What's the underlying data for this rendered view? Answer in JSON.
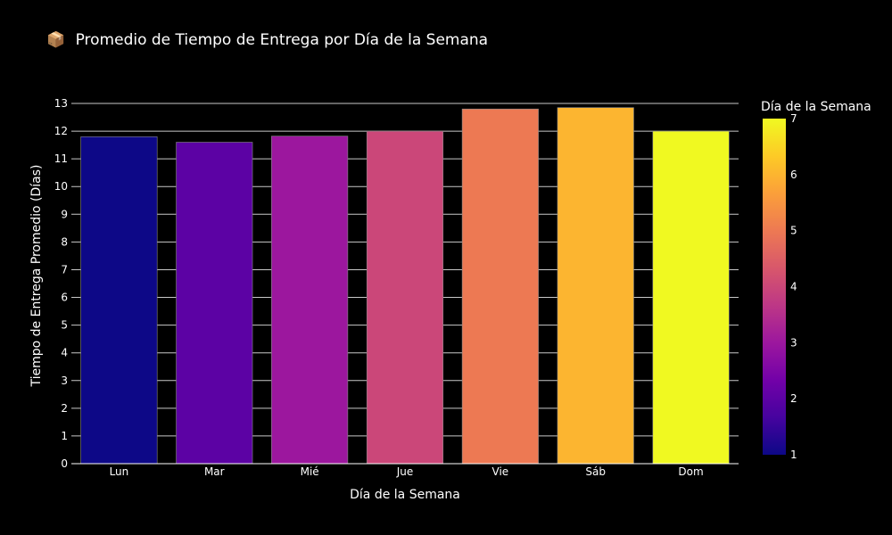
{
  "chart_data": {
    "type": "bar",
    "title_icon": "📦",
    "title": "Promedio de Tiempo de Entrega por Día de la Semana",
    "xlabel": "Día de la Semana",
    "ylabel": "Tiempo de Entrega Promedio (Días)",
    "categories": [
      "Lun",
      "Mar",
      "Mié",
      "Jue",
      "Vie",
      "Sáb",
      "Dom"
    ],
    "values": [
      11.8,
      11.6,
      11.82,
      12.0,
      12.8,
      12.85,
      12.0
    ],
    "color_values": [
      1,
      2,
      3,
      4,
      5,
      6,
      7
    ],
    "ylim": [
      0,
      13
    ],
    "yticks": [
      "0",
      "1",
      "2",
      "3",
      "4",
      "5",
      "6",
      "7",
      "8",
      "9",
      "10",
      "11",
      "12",
      "13"
    ],
    "grid": true,
    "colorbar": {
      "title": "Día de la Semana",
      "range": [
        1,
        7
      ],
      "ticks": [
        "1",
        "2",
        "3",
        "4",
        "5",
        "6",
        "7"
      ],
      "colorscale": "plasma"
    },
    "background": "#000000"
  }
}
